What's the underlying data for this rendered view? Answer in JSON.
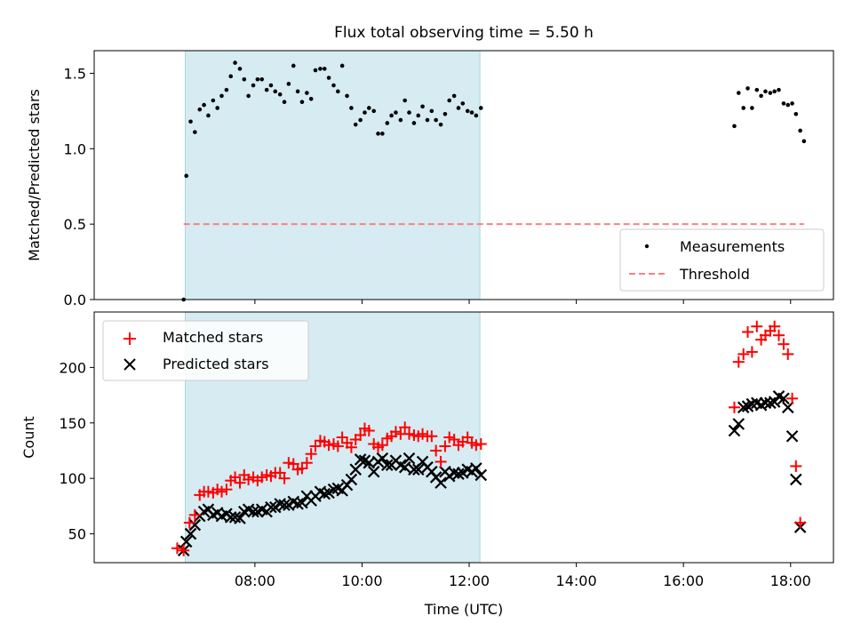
{
  "title": "Flux total observing time = 5.50 h",
  "chart_data": [
    {
      "type": "scatter",
      "ylabel": "Matched/Predicted stars",
      "xlabel": "",
      "xlim": [
        5.0,
        18.8
      ],
      "ylim": [
        0.0,
        1.65
      ],
      "yticks": [
        0.0,
        0.5,
        1.0,
        1.5
      ],
      "ytick_labels": [
        "0.0",
        "0.5",
        "1.0",
        "1.5"
      ],
      "shaded_interval": [
        6.7,
        12.2
      ],
      "legend_position": "lower right",
      "legend": [
        {
          "label": "Measurements",
          "marker": "dot",
          "color": "#000000"
        },
        {
          "label": "Threshold",
          "marker": "dashed-line",
          "color": "#ff7f7f"
        }
      ],
      "threshold": {
        "name": "Threshold",
        "y": 0.5,
        "x_range": [
          6.67,
          18.25
        ]
      },
      "series": [
        {
          "name": "Measurements",
          "points": [
            [
              6.67,
              0.0
            ],
            [
              6.72,
              0.82
            ],
            [
              6.8,
              1.18
            ],
            [
              6.88,
              1.11
            ],
            [
              6.97,
              1.26
            ],
            [
              7.05,
              1.29
            ],
            [
              7.13,
              1.22
            ],
            [
              7.22,
              1.32
            ],
            [
              7.3,
              1.27
            ],
            [
              7.38,
              1.35
            ],
            [
              7.47,
              1.39
            ],
            [
              7.55,
              1.48
            ],
            [
              7.63,
              1.57
            ],
            [
              7.72,
              1.53
            ],
            [
              7.8,
              1.46
            ],
            [
              7.88,
              1.35
            ],
            [
              7.97,
              1.42
            ],
            [
              8.05,
              1.46
            ],
            [
              8.13,
              1.46
            ],
            [
              8.22,
              1.39
            ],
            [
              8.3,
              1.42
            ],
            [
              8.38,
              1.38
            ],
            [
              8.47,
              1.36
            ],
            [
              8.55,
              1.31
            ],
            [
              8.63,
              1.43
            ],
            [
              8.72,
              1.55
            ],
            [
              8.8,
              1.38
            ],
            [
              8.88,
              1.31
            ],
            [
              8.97,
              1.37
            ],
            [
              9.05,
              1.33
            ],
            [
              9.13,
              1.52
            ],
            [
              9.22,
              1.53
            ],
            [
              9.3,
              1.53
            ],
            [
              9.38,
              1.47
            ],
            [
              9.47,
              1.42
            ],
            [
              9.55,
              1.38
            ],
            [
              9.63,
              1.55
            ],
            [
              9.72,
              1.35
            ],
            [
              9.8,
              1.27
            ],
            [
              9.88,
              1.16
            ],
            [
              9.97,
              1.19
            ],
            [
              10.05,
              1.24
            ],
            [
              10.13,
              1.27
            ],
            [
              10.22,
              1.25
            ],
            [
              10.3,
              1.1
            ],
            [
              10.38,
              1.1
            ],
            [
              10.47,
              1.17
            ],
            [
              10.55,
              1.22
            ],
            [
              10.63,
              1.24
            ],
            [
              10.72,
              1.19
            ],
            [
              10.8,
              1.32
            ],
            [
              10.88,
              1.24
            ],
            [
              10.97,
              1.17
            ],
            [
              11.05,
              1.22
            ],
            [
              11.13,
              1.28
            ],
            [
              11.22,
              1.19
            ],
            [
              11.3,
              1.25
            ],
            [
              11.38,
              1.19
            ],
            [
              11.47,
              1.16
            ],
            [
              11.55,
              1.23
            ],
            [
              11.63,
              1.32
            ],
            [
              11.72,
              1.35
            ],
            [
              11.8,
              1.27
            ],
            [
              11.88,
              1.3
            ],
            [
              11.97,
              1.25
            ],
            [
              12.05,
              1.24
            ],
            [
              12.13,
              1.22
            ],
            [
              12.22,
              1.27
            ],
            [
              16.95,
              1.15
            ],
            [
              17.03,
              1.37
            ],
            [
              17.12,
              1.27
            ],
            [
              17.2,
              1.4
            ],
            [
              17.28,
              1.27
            ],
            [
              17.37,
              1.39
            ],
            [
              17.45,
              1.35
            ],
            [
              17.53,
              1.38
            ],
            [
              17.62,
              1.37
            ],
            [
              17.7,
              1.38
            ],
            [
              17.78,
              1.39
            ],
            [
              17.87,
              1.3
            ],
            [
              17.95,
              1.29
            ],
            [
              18.03,
              1.3
            ],
            [
              18.1,
              1.23
            ],
            [
              18.18,
              1.12
            ],
            [
              18.25,
              1.05
            ]
          ]
        }
      ]
    },
    {
      "type": "scatter",
      "ylabel": "Count",
      "xlabel": "Time (UTC)",
      "xlim": [
        5.0,
        18.8
      ],
      "ylim": [
        24,
        250
      ],
      "yticks": [
        50,
        100,
        150,
        200
      ],
      "ytick_labels": [
        "50",
        "100",
        "150",
        "200"
      ],
      "xticks": [
        8,
        10,
        12,
        14,
        16,
        18
      ],
      "xtick_labels": [
        "08:00",
        "10:00",
        "12:00",
        "14:00",
        "16:00",
        "18:00"
      ],
      "shaded_interval": [
        6.7,
        12.2
      ],
      "legend_position": "upper left",
      "legend": [
        {
          "label": "Matched stars",
          "marker": "plus",
          "color": "#ff0000"
        },
        {
          "label": "Predicted stars",
          "marker": "x",
          "color": "#000000"
        }
      ],
      "series": [
        {
          "name": "Matched stars",
          "color": "#ff0000",
          "marker": "plus",
          "points": [
            [
              6.55,
              37
            ],
            [
              6.67,
              35
            ],
            [
              6.78,
              60
            ],
            [
              6.88,
              67
            ],
            [
              6.97,
              85
            ],
            [
              7.05,
              88
            ],
            [
              7.13,
              88
            ],
            [
              7.22,
              87
            ],
            [
              7.3,
              90
            ],
            [
              7.38,
              88
            ],
            [
              7.47,
              90
            ],
            [
              7.55,
              98
            ],
            [
              7.63,
              101
            ],
            [
              7.72,
              96
            ],
            [
              7.8,
              103
            ],
            [
              7.88,
              99
            ],
            [
              7.97,
              101
            ],
            [
              8.05,
              98
            ],
            [
              8.13,
              101
            ],
            [
              8.22,
              103
            ],
            [
              8.3,
              102
            ],
            [
              8.38,
              105
            ],
            [
              8.47,
              105
            ],
            [
              8.55,
              100
            ],
            [
              8.63,
              114
            ],
            [
              8.72,
              113
            ],
            [
              8.8,
              108
            ],
            [
              8.88,
              109
            ],
            [
              8.97,
              114
            ],
            [
              9.05,
              122
            ],
            [
              9.13,
              129
            ],
            [
              9.22,
              134
            ],
            [
              9.3,
              133
            ],
            [
              9.38,
              130
            ],
            [
              9.47,
              131
            ],
            [
              9.55,
              129
            ],
            [
              9.63,
              137
            ],
            [
              9.72,
              132
            ],
            [
              9.8,
              128
            ],
            [
              9.88,
              135
            ],
            [
              9.97,
              139
            ],
            [
              10.05,
              145
            ],
            [
              10.13,
              143
            ],
            [
              10.22,
              131
            ],
            [
              10.3,
              128
            ],
            [
              10.38,
              130
            ],
            [
              10.47,
              136
            ],
            [
              10.55,
              138
            ],
            [
              10.63,
              142
            ],
            [
              10.72,
              140
            ],
            [
              10.8,
              146
            ],
            [
              10.88,
              140
            ],
            [
              10.97,
              139
            ],
            [
              11.05,
              138
            ],
            [
              11.13,
              140
            ],
            [
              11.22,
              138
            ],
            [
              11.3,
              138
            ],
            [
              11.38,
              125
            ],
            [
              11.47,
              115
            ],
            [
              11.55,
              129
            ],
            [
              11.63,
              137
            ],
            [
              11.72,
              135
            ],
            [
              11.8,
              130
            ],
            [
              11.88,
              133
            ],
            [
              11.97,
              137
            ],
            [
              12.05,
              132
            ],
            [
              12.13,
              130
            ],
            [
              12.22,
              131
            ],
            [
              16.95,
              164
            ],
            [
              17.03,
              205
            ],
            [
              17.12,
              212
            ],
            [
              17.2,
              232
            ],
            [
              17.28,
              214
            ],
            [
              17.37,
              237
            ],
            [
              17.45,
              225
            ],
            [
              17.53,
              229
            ],
            [
              17.62,
              233
            ],
            [
              17.7,
              237
            ],
            [
              17.78,
              229
            ],
            [
              17.87,
              221
            ],
            [
              17.95,
              212
            ],
            [
              18.03,
              172
            ],
            [
              18.1,
              111
            ],
            [
              18.18,
              60
            ]
          ]
        },
        {
          "name": "Predicted stars",
          "color": "#000000",
          "marker": "x",
          "points": [
            [
              6.67,
              35
            ],
            [
              6.72,
              43
            ],
            [
              6.8,
              50
            ],
            [
              6.88,
              58
            ],
            [
              6.97,
              66
            ],
            [
              7.05,
              70
            ],
            [
              7.13,
              72
            ],
            [
              7.22,
              67
            ],
            [
              7.3,
              69
            ],
            [
              7.38,
              66
            ],
            [
              7.47,
              68
            ],
            [
              7.55,
              65
            ],
            [
              7.63,
              65
            ],
            [
              7.72,
              64
            ],
            [
              7.8,
              70
            ],
            [
              7.88,
              72
            ],
            [
              7.97,
              70
            ],
            [
              8.05,
              70
            ],
            [
              8.13,
              72
            ],
            [
              8.22,
              70
            ],
            [
              8.3,
              74
            ],
            [
              8.38,
              74
            ],
            [
              8.47,
              77
            ],
            [
              8.55,
              76
            ],
            [
              8.63,
              76
            ],
            [
              8.72,
              79
            ],
            [
              8.8,
              77
            ],
            [
              8.88,
              78
            ],
            [
              8.97,
              84
            ],
            [
              9.05,
              80
            ],
            [
              9.13,
              84
            ],
            [
              9.22,
              88
            ],
            [
              9.3,
              86
            ],
            [
              9.38,
              87
            ],
            [
              9.47,
              90
            ],
            [
              9.55,
              91
            ],
            [
              9.63,
              89
            ],
            [
              9.72,
              94
            ],
            [
              9.8,
              99
            ],
            [
              9.88,
              108
            ],
            [
              9.97,
              117
            ],
            [
              10.05,
              116
            ],
            [
              10.13,
              114
            ],
            [
              10.22,
              106
            ],
            [
              10.3,
              115
            ],
            [
              10.38,
              118
            ],
            [
              10.47,
              112
            ],
            [
              10.55,
              112
            ],
            [
              10.63,
              116
            ],
            [
              10.72,
              112
            ],
            [
              10.8,
              110
            ],
            [
              10.88,
              118
            ],
            [
              10.97,
              108
            ],
            [
              11.05,
              108
            ],
            [
              11.13,
              115
            ],
            [
              11.22,
              110
            ],
            [
              11.3,
              106
            ],
            [
              11.38,
              101
            ],
            [
              11.47,
              96
            ],
            [
              11.55,
              106
            ],
            [
              11.63,
              102
            ],
            [
              11.72,
              105
            ],
            [
              11.8,
              104
            ],
            [
              11.88,
              105
            ],
            [
              11.97,
              108
            ],
            [
              12.05,
              106
            ],
            [
              12.13,
              109
            ],
            [
              12.22,
              103
            ],
            [
              16.95,
              143
            ],
            [
              17.03,
              149
            ],
            [
              17.12,
              164
            ],
            [
              17.2,
              165
            ],
            [
              17.28,
              167
            ],
            [
              17.37,
              168
            ],
            [
              17.45,
              166
            ],
            [
              17.53,
              168
            ],
            [
              17.62,
              168
            ],
            [
              17.7,
              169
            ],
            [
              17.78,
              174
            ],
            [
              17.87,
              172
            ],
            [
              17.95,
              164
            ],
            [
              18.03,
              138
            ],
            [
              18.1,
              99
            ],
            [
              18.18,
              56
            ]
          ]
        }
      ]
    }
  ]
}
